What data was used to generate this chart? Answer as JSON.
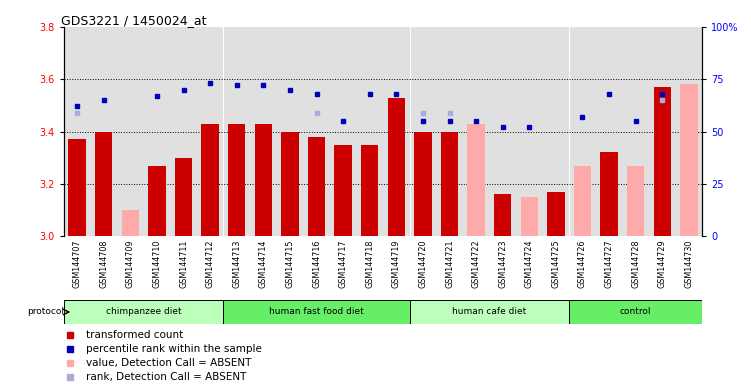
{
  "title": "GDS3221 / 1450024_at",
  "samples": [
    "GSM144707",
    "GSM144708",
    "GSM144709",
    "GSM144710",
    "GSM144711",
    "GSM144712",
    "GSM144713",
    "GSM144714",
    "GSM144715",
    "GSM144716",
    "GSM144717",
    "GSM144718",
    "GSM144719",
    "GSM144720",
    "GSM144721",
    "GSM144722",
    "GSM144723",
    "GSM144724",
    "GSM144725",
    "GSM144726",
    "GSM144727",
    "GSM144728",
    "GSM144729",
    "GSM144730"
  ],
  "groups": [
    {
      "label": "chimpanzee diet",
      "start": 0,
      "end": 6
    },
    {
      "label": "human fast food diet",
      "start": 6,
      "end": 13
    },
    {
      "label": "human cafe diet",
      "start": 13,
      "end": 19
    },
    {
      "label": "control",
      "start": 19,
      "end": 24
    }
  ],
  "group_colors": [
    "#bbffbb",
    "#66ee66",
    "#bbffbb",
    "#66ee66"
  ],
  "transformed_count": [
    3.37,
    3.4,
    null,
    3.27,
    3.3,
    3.43,
    3.43,
    3.43,
    3.4,
    3.38,
    3.35,
    3.35,
    3.53,
    3.4,
    3.4,
    null,
    3.16,
    null,
    3.17,
    null,
    3.32,
    null,
    3.57,
    null
  ],
  "percentile_rank": [
    62,
    65,
    null,
    67,
    70,
    73,
    72,
    72,
    70,
    68,
    55,
    68,
    68,
    55,
    55,
    55,
    52,
    52,
    null,
    57,
    68,
    55,
    68,
    null
  ],
  "absent_value": [
    null,
    null,
    3.1,
    null,
    null,
    null,
    null,
    null,
    null,
    null,
    null,
    null,
    null,
    null,
    null,
    3.43,
    null,
    3.15,
    null,
    3.27,
    null,
    3.27,
    null,
    3.58
  ],
  "absent_rank_val": [
    3.47,
    null,
    null,
    null,
    null,
    null,
    null,
    null,
    null,
    3.47,
    null,
    null,
    null,
    3.47,
    3.47,
    null,
    null,
    null,
    null,
    null,
    null,
    null,
    3.52,
    null
  ],
  "ylim_left": [
    3.0,
    3.8
  ],
  "ylim_right": [
    0,
    100
  ],
  "yticks_left": [
    3.0,
    3.2,
    3.4,
    3.6,
    3.8
  ],
  "yticks_right": [
    0,
    25,
    50,
    75,
    100
  ],
  "ytick_right_labels": [
    "0",
    "25",
    "50",
    "75",
    "100%"
  ],
  "bar_color_present": "#cc0000",
  "bar_color_absent_val": "#ffaaaa",
  "dot_color_present": "#0000bb",
  "dot_color_absent_rank": "#aaaadd",
  "bg_plot": "#e0e0e0",
  "bg_xtick": "#cccccc",
  "title_fontsize": 9,
  "tick_fontsize": 7,
  "legend_fontsize": 7.5
}
